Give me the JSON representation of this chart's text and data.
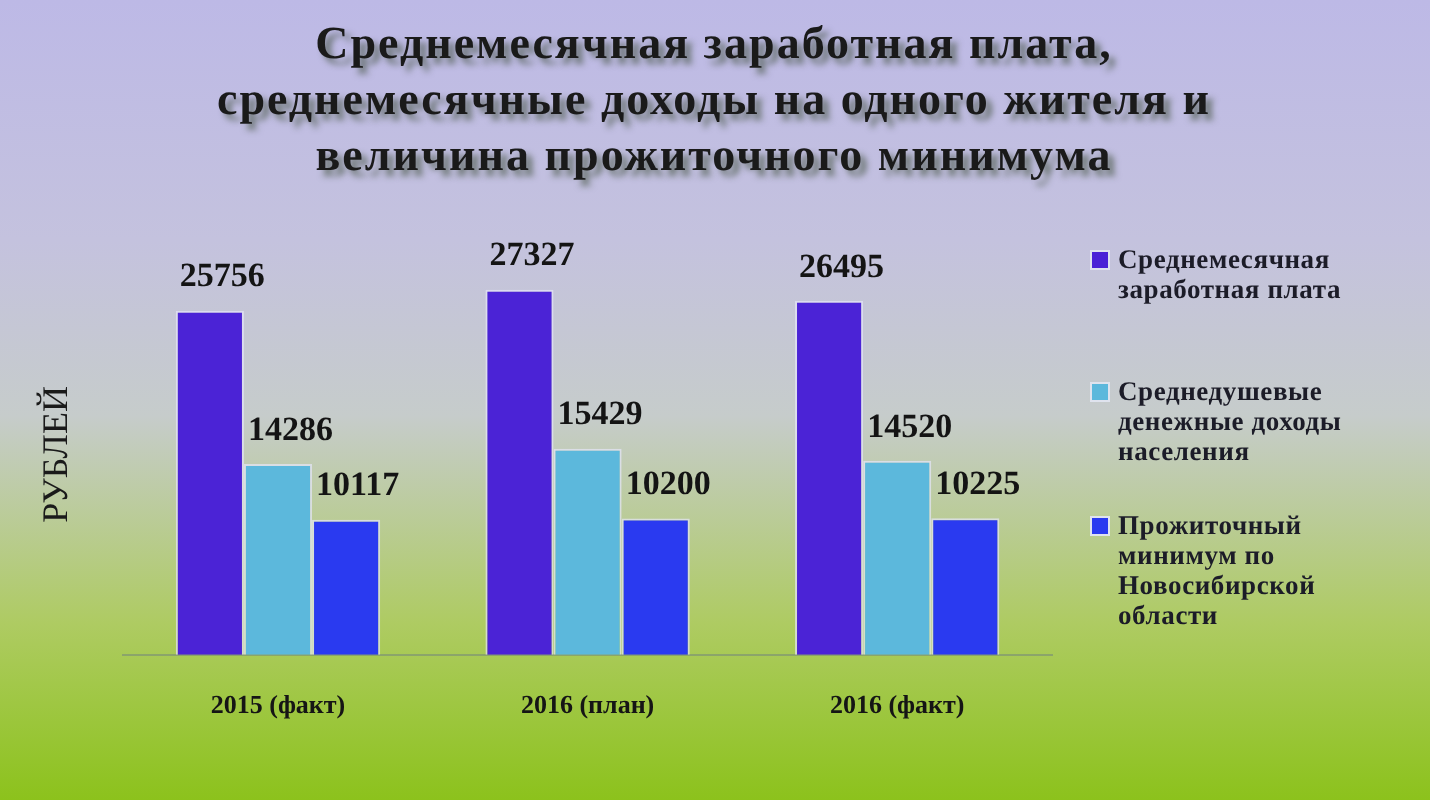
{
  "chart_data": {
    "type": "bar",
    "title": "Среднемесячная заработная плата, среднемесячные доходы на одного жителя и величина прожиточного минимума",
    "ylabel": "РУБЛЕЙ",
    "categories": [
      "2015 (факт)",
      "2016 (план)",
      "2016 (факт)"
    ],
    "series": [
      {
        "name": "Среднемесячная заработная плата",
        "color": "#4b23d6",
        "values": [
          25756,
          27327,
          26495
        ]
      },
      {
        "name": "Среднедушевые денежные доходы населения",
        "color": "#5cb8dc",
        "values": [
          14286,
          15429,
          14520
        ]
      },
      {
        "name": "Прожиточный минимум по Новосибирской области",
        "color": "#2a3af0",
        "values": [
          10117,
          10200,
          10225
        ]
      }
    ],
    "data_labels": true,
    "legend": "right",
    "grid": false
  }
}
